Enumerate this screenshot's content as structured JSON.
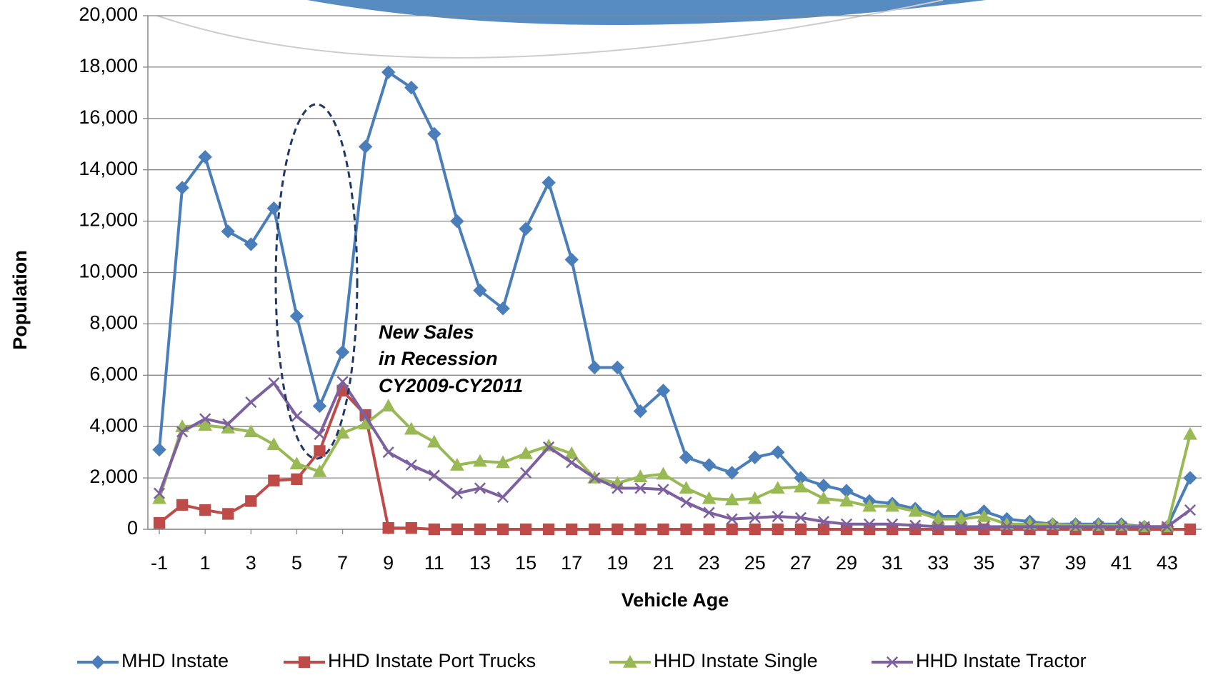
{
  "chart_data": {
    "type": "line",
    "x_label": "Vehicle Age",
    "y_label": "Population",
    "annotation": [
      "New Sales",
      "in Recession",
      "CY2009-CY2011"
    ],
    "x": [
      -1,
      0,
      1,
      2,
      3,
      4,
      5,
      6,
      7,
      8,
      9,
      10,
      11,
      12,
      13,
      14,
      15,
      16,
      17,
      18,
      19,
      20,
      21,
      22,
      23,
      24,
      25,
      26,
      27,
      28,
      29,
      30,
      31,
      32,
      33,
      34,
      35,
      36,
      37,
      38,
      39,
      40,
      41,
      42,
      43,
      44
    ],
    "xlim": [
      -1.5,
      44.5
    ],
    "xticks": [
      -1,
      1,
      3,
      5,
      7,
      9,
      11,
      13,
      15,
      17,
      19,
      21,
      23,
      25,
      27,
      29,
      31,
      33,
      35,
      37,
      39,
      41,
      43
    ],
    "ylim": [
      0,
      20000
    ],
    "yticks": [
      0,
      {
        "value": 2000,
        "label": "2,000"
      },
      {
        "value": 4000,
        "label": "4,000"
      },
      {
        "value": 6000,
        "label": "6,000"
      },
      {
        "value": 8000,
        "label": "8,000"
      },
      {
        "value": 10000,
        "label": "10,000"
      },
      {
        "value": 12000,
        "label": "12,000"
      },
      {
        "value": 14000,
        "label": "14,000"
      },
      {
        "value": 16000,
        "label": "16,000"
      },
      {
        "value": 18000,
        "label": "18,000"
      },
      {
        "value": 20000,
        "label": "20,000"
      }
    ],
    "grid": true,
    "legend": "bottom",
    "series": [
      {
        "name": "MHD Instate",
        "color": "#4a7ebb",
        "marker": "diamond",
        "values": [
          3100,
          13300,
          14500,
          11600,
          11100,
          12500,
          8300,
          4800,
          6900,
          14900,
          17800,
          17200,
          15400,
          12000,
          9300,
          8600,
          11700,
          13500,
          10500,
          6300,
          6300,
          4600,
          5400,
          2800,
          2500,
          2200,
          2800,
          3000,
          2000,
          1700,
          1500,
          1100,
          1000,
          800,
          500,
          500,
          700,
          400,
          300,
          200,
          200,
          200,
          200,
          100,
          100,
          2000
        ]
      },
      {
        "name": "HHD Instate Port Trucks",
        "color": "#be4b48",
        "marker": "square",
        "values": [
          250,
          950,
          750,
          600,
          1100,
          1900,
          1950,
          3050,
          5400,
          4450,
          50,
          50,
          0,
          0,
          0,
          0,
          0,
          0,
          0,
          0,
          0,
          0,
          0,
          0,
          0,
          0,
          0,
          0,
          0,
          0,
          0,
          0,
          0,
          0,
          0,
          0,
          0,
          0,
          0,
          0,
          0,
          0,
          0,
          0,
          0,
          0
        ]
      },
      {
        "name": "HHD Instate Single",
        "color": "#98b954",
        "marker": "triangle",
        "values": [
          1200,
          4000,
          4050,
          3950,
          3800,
          3300,
          2550,
          2250,
          3750,
          4100,
          4800,
          3900,
          3400,
          2500,
          2650,
          2600,
          2950,
          3250,
          2950,
          2000,
          1800,
          2050,
          2150,
          1600,
          1200,
          1150,
          1200,
          1600,
          1650,
          1200,
          1100,
          900,
          900,
          700,
          400,
          400,
          500,
          200,
          200,
          200,
          150,
          150,
          150,
          100,
          100,
          3700
        ]
      },
      {
        "name": "HHD Instate Tractor",
        "color": "#7d60a0",
        "marker": "x",
        "values": [
          1400,
          3800,
          4300,
          4100,
          4950,
          5700,
          4400,
          3700,
          5750,
          4400,
          3000,
          2500,
          2100,
          1400,
          1600,
          1250,
          2200,
          3200,
          2600,
          2000,
          1600,
          1600,
          1550,
          1050,
          650,
          400,
          450,
          500,
          450,
          300,
          200,
          200,
          200,
          150,
          100,
          100,
          100,
          100,
          100,
          100,
          100,
          100,
          100,
          100,
          100,
          750
        ]
      }
    ]
  }
}
